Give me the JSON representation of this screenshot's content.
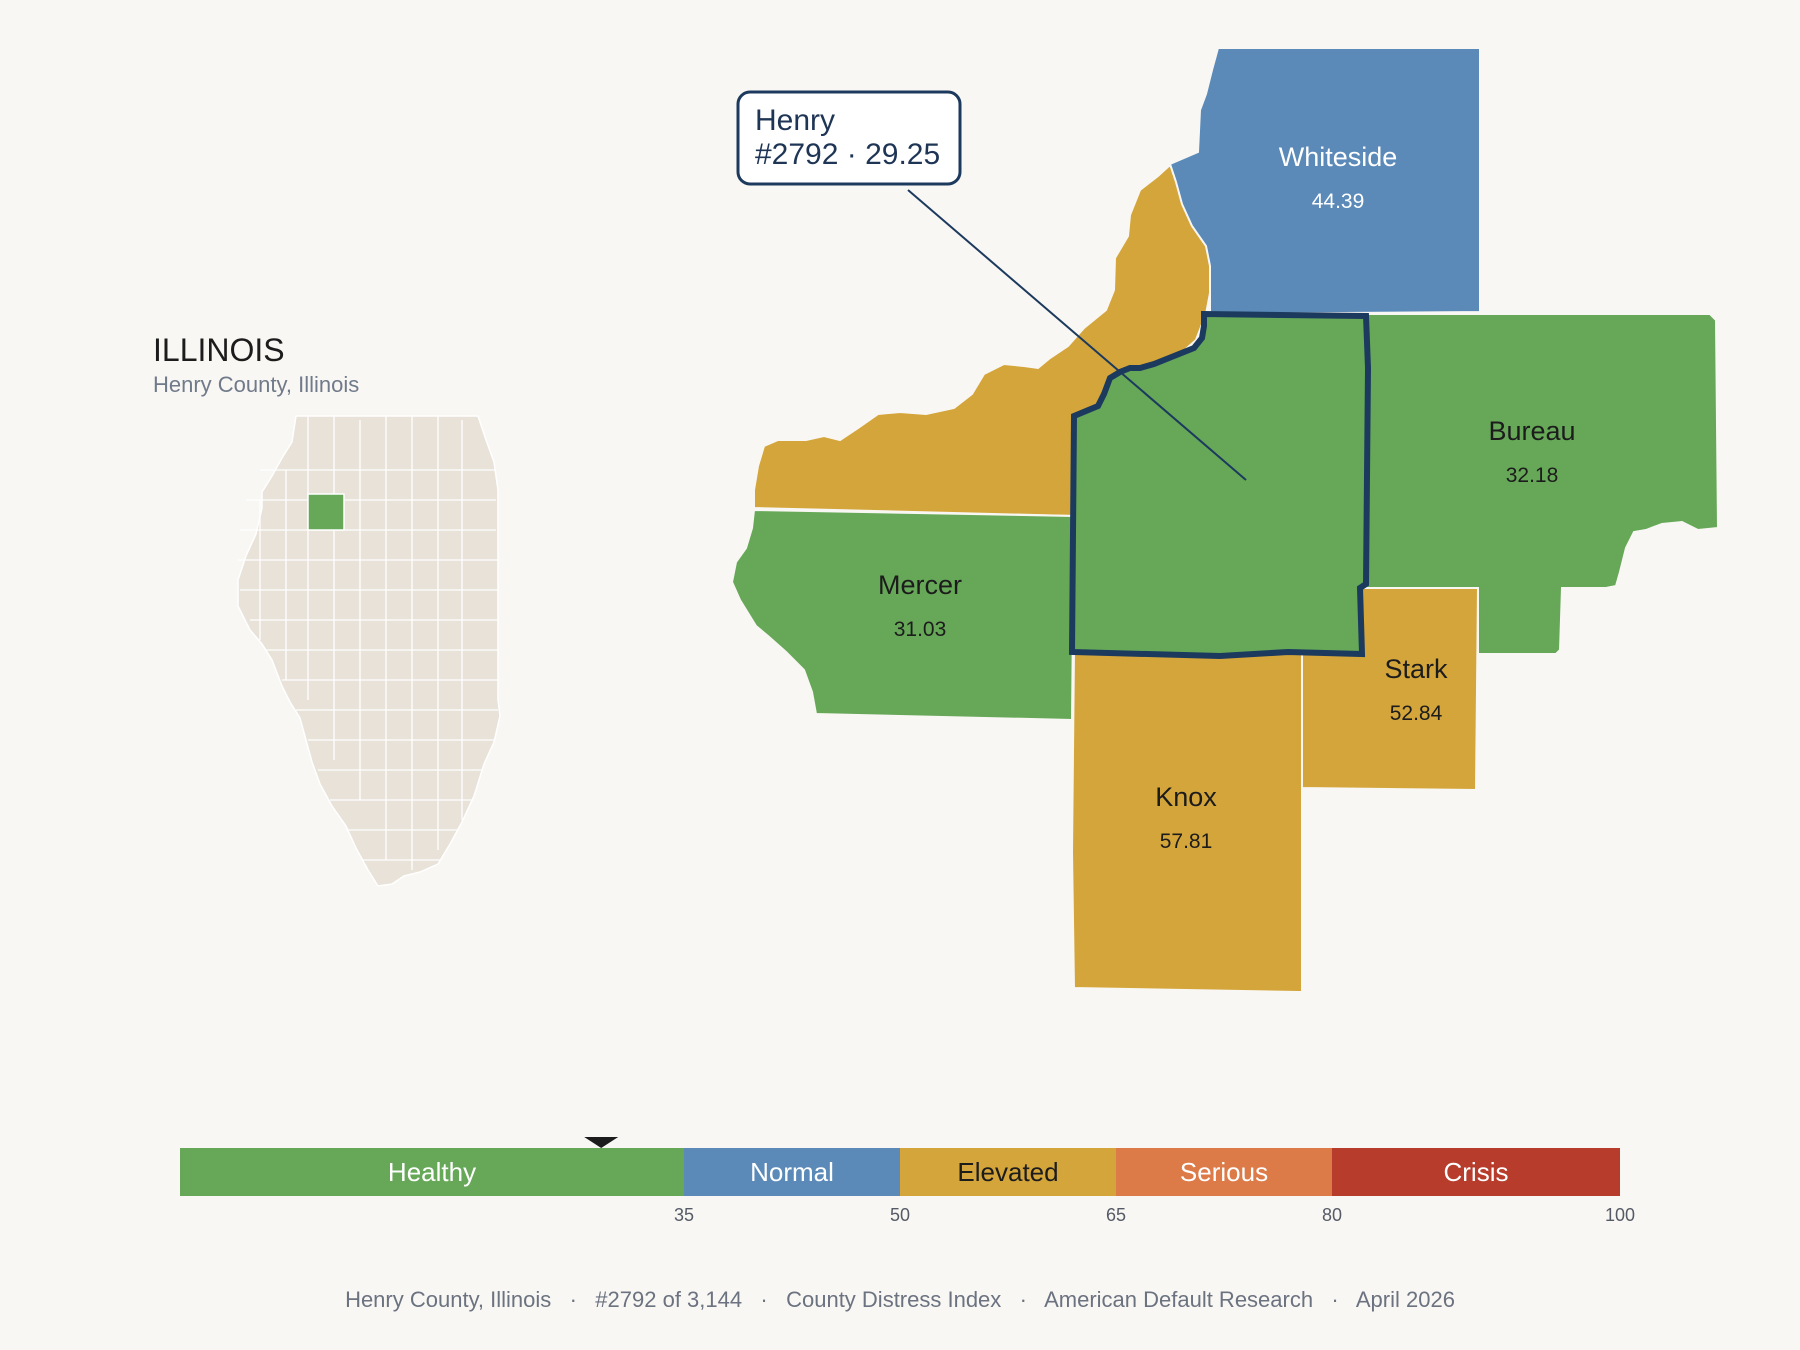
{
  "inset": {
    "title": "ILLINOIS",
    "subtitle": "Henry County, Illinois",
    "base_color": "#e8e2d8",
    "highlight_color": "#66a858"
  },
  "colors": {
    "healthy": "#66a858",
    "normal": "#5b8ab9",
    "elevated": "#d4a53b",
    "serious": "#dc7a48",
    "crisis": "#b73c2c",
    "outline": "#1c3a5e"
  },
  "counties": {
    "whiteside": {
      "name": "Whiteside",
      "score": "44.39"
    },
    "bureau": {
      "name": "Bureau",
      "score": "32.18"
    },
    "mercer": {
      "name": "Mercer",
      "score": "31.03"
    },
    "stark": {
      "name": "Stark",
      "score": "52.84"
    },
    "knox": {
      "name": "Knox",
      "score": "57.81"
    }
  },
  "callout": {
    "name": "Henry",
    "detail": "#2792 · 29.25"
  },
  "scale": {
    "marker_value": 29.25,
    "bands": [
      {
        "label": "Healthy",
        "color": "#66a858",
        "text_color": "#ffffff"
      },
      {
        "label": "Normal",
        "color": "#5b8ab9",
        "text_color": "#ffffff"
      },
      {
        "label": "Elevated",
        "color": "#d4a53b",
        "text_color": "#1c1c1c"
      },
      {
        "label": "Serious",
        "color": "#dc7a48",
        "text_color": "#ffffff"
      },
      {
        "label": "Crisis",
        "color": "#b73c2c",
        "text_color": "#ffffff"
      }
    ],
    "ticks": [
      "35",
      "50",
      "65",
      "80",
      "100"
    ]
  },
  "footer": {
    "text": "Henry County, Illinois   ·   #2792 of 3,144   ·   County Distress Index   ·   American Default Research   ·   April 2026"
  }
}
